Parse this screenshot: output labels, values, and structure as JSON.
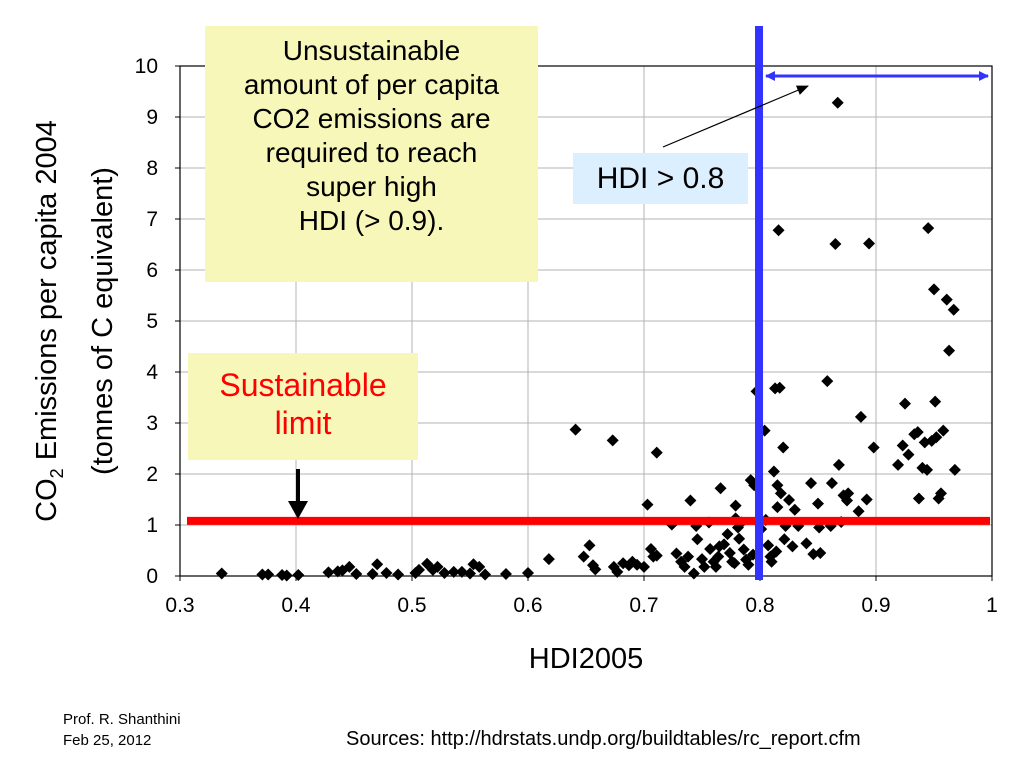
{
  "chart_data": {
    "type": "scatter",
    "title": "",
    "xlabel": "HDI2005",
    "ylabel_line1_main": "CO",
    "ylabel_line1_sub": "2",
    "ylabel_line1_rest": " Emissions per capita 2004",
    "ylabel_line2": "(tonnes of C equivalent)",
    "xlim": [
      0.3,
      1.0
    ],
    "ylim": [
      0,
      10
    ],
    "xticks": [
      "0.3",
      "0.4",
      "0.5",
      "0.6",
      "0.7",
      "0.8",
      "0.9",
      "1"
    ],
    "yticks": [
      "0",
      "1",
      "2",
      "3",
      "4",
      "5",
      "6",
      "7",
      "8",
      "9",
      "10"
    ],
    "grid": true,
    "marker": "diamond",
    "marker_color": "#000000",
    "sustainable_limit_y": 1.08,
    "sustainable_limit_color": "#ff0000",
    "hdi_threshold_x": 0.8,
    "hdi_threshold_color": "#3333ff",
    "points": [
      [
        0.336,
        0.05
      ],
      [
        0.371,
        0.03
      ],
      [
        0.376,
        0.03
      ],
      [
        0.388,
        0.02
      ],
      [
        0.392,
        0.01
      ],
      [
        0.402,
        0.02
      ],
      [
        0.428,
        0.07
      ],
      [
        0.436,
        0.09
      ],
      [
        0.44,
        0.11
      ],
      [
        0.446,
        0.18
      ],
      [
        0.452,
        0.04
      ],
      [
        0.466,
        0.04
      ],
      [
        0.47,
        0.23
      ],
      [
        0.478,
        0.06
      ],
      [
        0.488,
        0.03
      ],
      [
        0.503,
        0.06
      ],
      [
        0.506,
        0.12
      ],
      [
        0.513,
        0.24
      ],
      [
        0.518,
        0.12
      ],
      [
        0.522,
        0.18
      ],
      [
        0.528,
        0.06
      ],
      [
        0.536,
        0.08
      ],
      [
        0.543,
        0.08
      ],
      [
        0.55,
        0.05
      ],
      [
        0.553,
        0.23
      ],
      [
        0.558,
        0.18
      ],
      [
        0.563,
        0.03
      ],
      [
        0.581,
        0.04
      ],
      [
        0.6,
        0.06
      ],
      [
        0.618,
        0.33
      ],
      [
        0.641,
        2.87
      ],
      [
        0.648,
        0.38
      ],
      [
        0.653,
        0.6
      ],
      [
        0.656,
        0.21
      ],
      [
        0.658,
        0.13
      ],
      [
        0.673,
        2.66
      ],
      [
        0.674,
        0.18
      ],
      [
        0.677,
        0.08
      ],
      [
        0.682,
        0.25
      ],
      [
        0.687,
        0.21
      ],
      [
        0.69,
        0.28
      ],
      [
        0.694,
        0.22
      ],
      [
        0.7,
        0.18
      ],
      [
        0.703,
        1.4
      ],
      [
        0.706,
        0.53
      ],
      [
        0.708,
        0.38
      ],
      [
        0.711,
        0.4
      ],
      [
        0.711,
        2.42
      ],
      [
        0.724,
        1.01
      ],
      [
        0.728,
        0.44
      ],
      [
        0.732,
        0.28
      ],
      [
        0.735,
        0.18
      ],
      [
        0.738,
        0.38
      ],
      [
        0.74,
        1.48
      ],
      [
        0.743,
        0.05
      ],
      [
        0.745,
        0.98
      ],
      [
        0.746,
        0.72
      ],
      [
        0.75,
        0.33
      ],
      [
        0.752,
        0.18
      ],
      [
        0.756,
        1.05
      ],
      [
        0.757,
        0.53
      ],
      [
        0.76,
        0.28
      ],
      [
        0.762,
        0.18
      ],
      [
        0.764,
        0.38
      ],
      [
        0.765,
        0.58
      ],
      [
        0.766,
        1.72
      ],
      [
        0.769,
        0.62
      ],
      [
        0.772,
        0.82
      ],
      [
        0.774,
        0.45
      ],
      [
        0.776,
        0.28
      ],
      [
        0.778,
        0.25
      ],
      [
        0.779,
        1.38
      ],
      [
        0.779,
        1.13
      ],
      [
        0.781,
        0.95
      ],
      [
        0.782,
        0.73
      ],
      [
        0.784,
        1.05
      ],
      [
        0.786,
        0.52
      ],
      [
        0.788,
        0.32
      ],
      [
        0.79,
        0.22
      ],
      [
        0.792,
        1.88
      ],
      [
        0.794,
        0.42
      ],
      [
        0.795,
        1.78
      ],
      [
        0.797,
        3.62
      ],
      [
        0.801,
        0.92
      ],
      [
        0.804,
        2.85
      ],
      [
        0.805,
        1.1
      ],
      [
        0.807,
        0.6
      ],
      [
        0.809,
        0.38
      ],
      [
        0.81,
        0.28
      ],
      [
        0.812,
        2.05
      ],
      [
        0.813,
        3.68
      ],
      [
        0.814,
        0.48
      ],
      [
        0.815,
        1.35
      ],
      [
        0.815,
        1.78
      ],
      [
        0.816,
        6.78
      ],
      [
        0.817,
        3.69
      ],
      [
        0.818,
        1.62
      ],
      [
        0.82,
        2.52
      ],
      [
        0.821,
        0.72
      ],
      [
        0.822,
        0.98
      ],
      [
        0.825,
        1.49
      ],
      [
        0.828,
        0.58
      ],
      [
        0.83,
        1.3
      ],
      [
        0.833,
        0.98
      ],
      [
        0.84,
        0.64
      ],
      [
        0.844,
        1.82
      ],
      [
        0.846,
        0.43
      ],
      [
        0.85,
        1.42
      ],
      [
        0.851,
        0.95
      ],
      [
        0.852,
        0.45
      ],
      [
        0.858,
        3.82
      ],
      [
        0.861,
        0.98
      ],
      [
        0.862,
        1.82
      ],
      [
        0.865,
        6.51
      ],
      [
        0.867,
        9.28
      ],
      [
        0.868,
        2.18
      ],
      [
        0.87,
        1.06
      ],
      [
        0.872,
        1.58
      ],
      [
        0.875,
        1.48
      ],
      [
        0.876,
        1.62
      ],
      [
        0.885,
        1.27
      ],
      [
        0.887,
        3.12
      ],
      [
        0.892,
        1.5
      ],
      [
        0.894,
        6.52
      ],
      [
        0.898,
        2.52
      ],
      [
        0.919,
        2.18
      ],
      [
        0.923,
        2.56
      ],
      [
        0.925,
        3.38
      ],
      [
        0.928,
        2.38
      ],
      [
        0.933,
        2.78
      ],
      [
        0.936,
        2.82
      ],
      [
        0.937,
        1.52
      ],
      [
        0.94,
        2.12
      ],
      [
        0.942,
        2.62
      ],
      [
        0.944,
        2.08
      ],
      [
        0.945,
        6.82
      ],
      [
        0.948,
        2.65
      ],
      [
        0.95,
        5.62
      ],
      [
        0.951,
        3.42
      ],
      [
        0.952,
        2.72
      ],
      [
        0.954,
        1.52
      ],
      [
        0.956,
        1.62
      ],
      [
        0.958,
        2.85
      ],
      [
        0.961,
        5.42
      ],
      [
        0.963,
        4.42
      ],
      [
        0.967,
        5.22
      ],
      [
        0.968,
        2.08
      ]
    ]
  },
  "callouts": {
    "unsustainable_lines": [
      "Unsustainable",
      "amount of per capita",
      "CO2 emissions are",
      "required to reach",
      "super high",
      "HDI (> 0.9)."
    ],
    "sustainable_line1": "Sustainable",
    "sustainable_line2": "limit",
    "hdi_label": "HDI > 0.8"
  },
  "footer": {
    "author": "Prof. R. Shanthini",
    "date": "Feb 25, 2012",
    "sources": "Sources: http://hdrstats.undp.org/buildtables/rc_report.cfm"
  }
}
